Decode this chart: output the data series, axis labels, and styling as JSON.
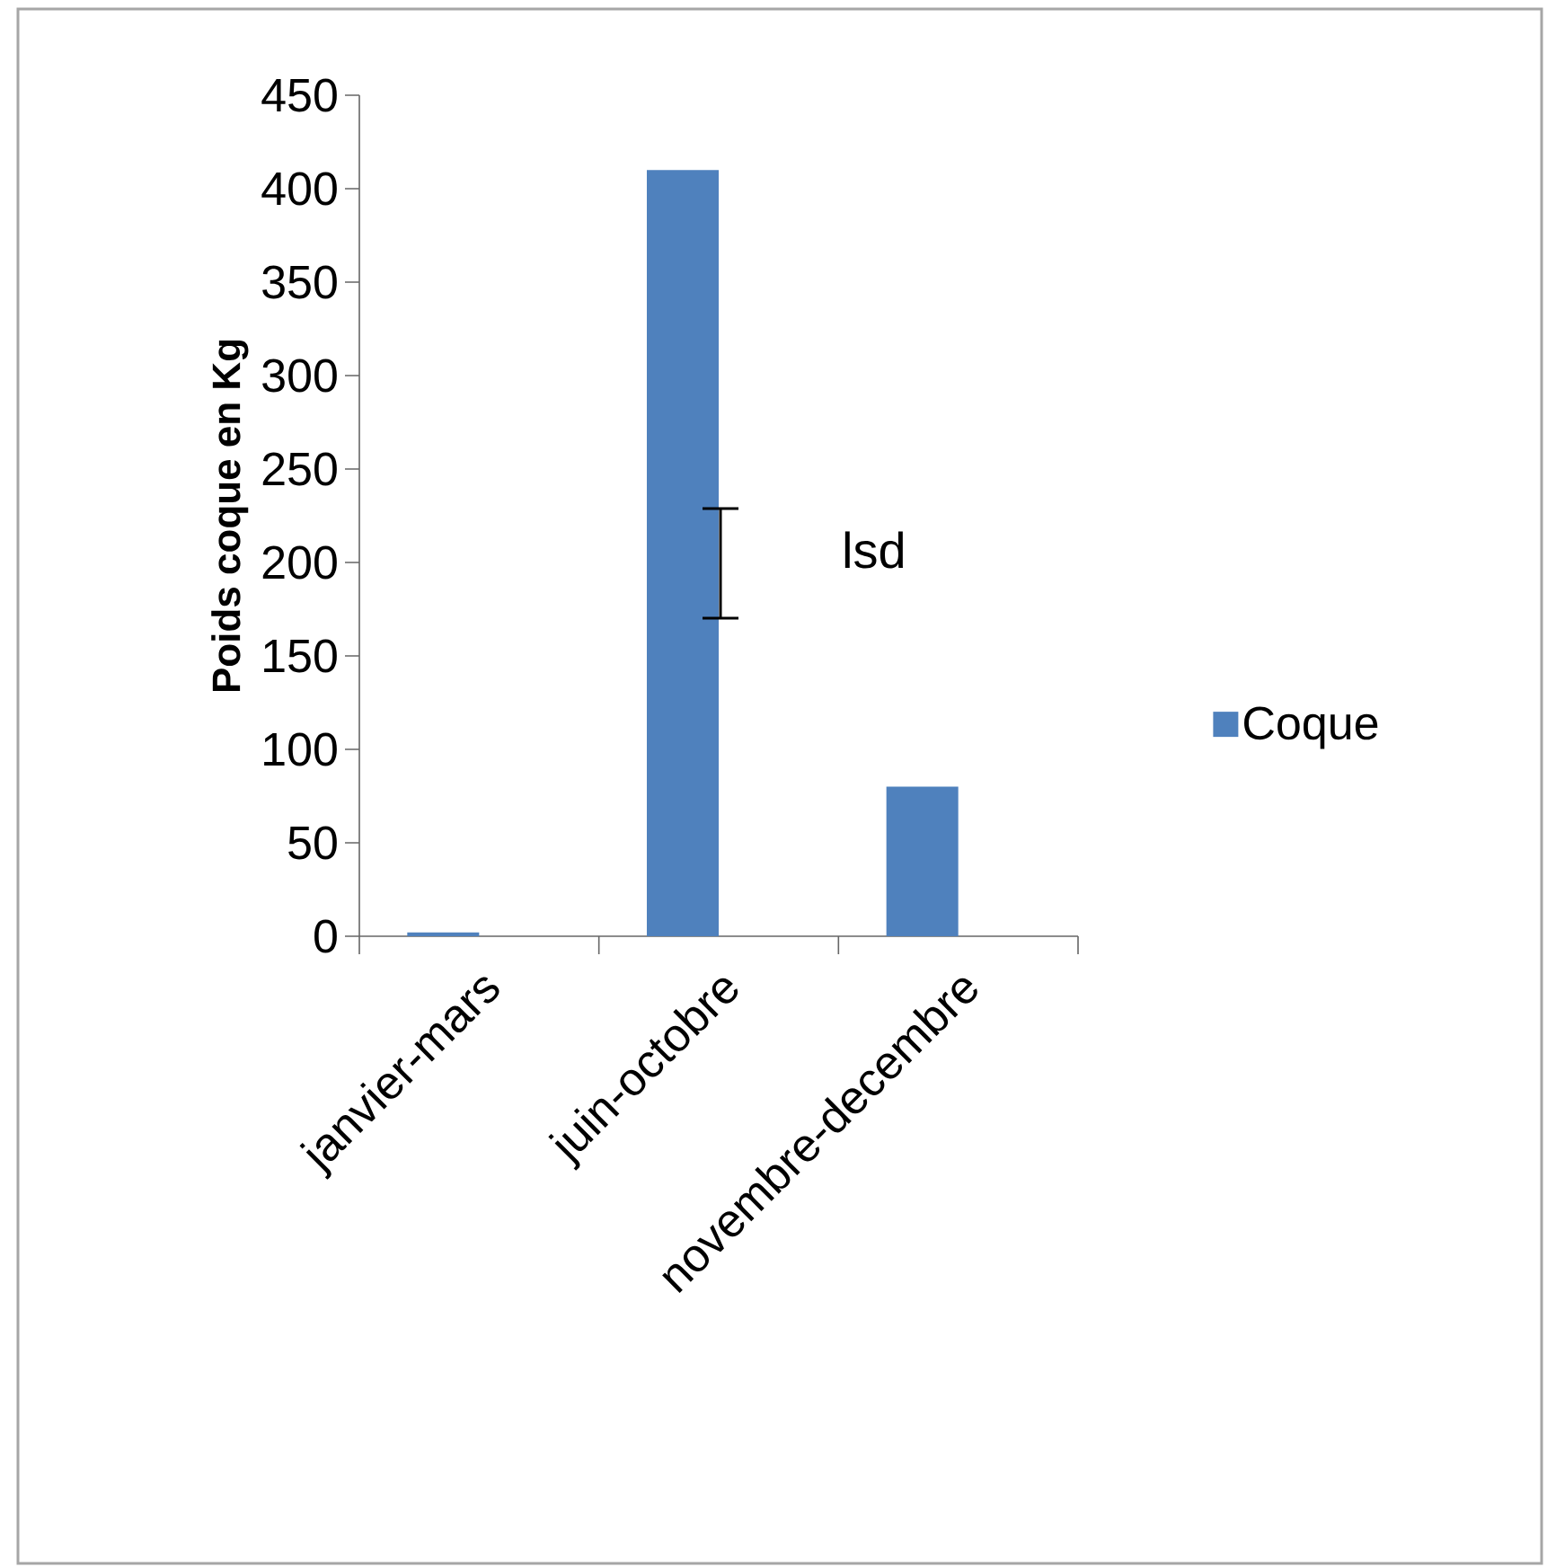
{
  "chart_data": {
    "type": "bar",
    "ylabel": "Poids coque en Kg",
    "categories": [
      "janvier-mars",
      "juin-octobre",
      "novembre-decembre"
    ],
    "series": [
      {
        "name": "Coque",
        "color": "#4f81bd",
        "values": [
          2,
          410,
          80
        ]
      }
    ],
    "ylim": [
      0,
      450
    ],
    "yticks": [
      0,
      50,
      100,
      150,
      200,
      250,
      300,
      350,
      400,
      450
    ],
    "grid": false,
    "legend": "right",
    "annotations": [
      "lsd"
    ]
  }
}
